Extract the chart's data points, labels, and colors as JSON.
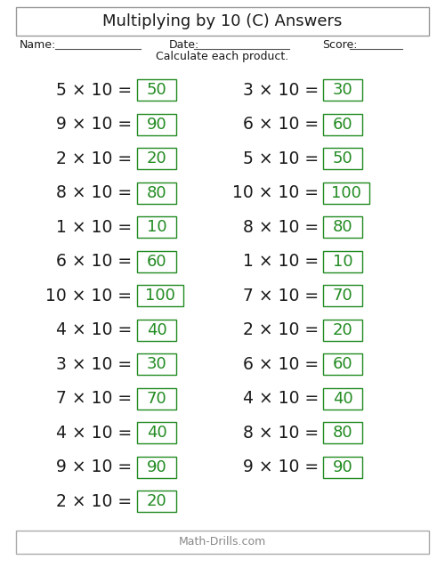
{
  "title": "Multiplying by 10 (C) Answers",
  "name_label": "Name:",
  "date_label": "Date:",
  "score_label": "Score:",
  "instruction": "Calculate each product.",
  "footer": "Math-Drills.com",
  "left_questions": [
    {
      "a": 5,
      "b": 10,
      "ans": 50
    },
    {
      "a": 9,
      "b": 10,
      "ans": 90
    },
    {
      "a": 2,
      "b": 10,
      "ans": 20
    },
    {
      "a": 8,
      "b": 10,
      "ans": 80
    },
    {
      "a": 1,
      "b": 10,
      "ans": 10
    },
    {
      "a": 6,
      "b": 10,
      "ans": 60
    },
    {
      "a": 10,
      "b": 10,
      "ans": 100
    },
    {
      "a": 4,
      "b": 10,
      "ans": 40
    },
    {
      "a": 3,
      "b": 10,
      "ans": 30
    },
    {
      "a": 7,
      "b": 10,
      "ans": 70
    },
    {
      "a": 4,
      "b": 10,
      "ans": 40
    },
    {
      "a": 9,
      "b": 10,
      "ans": 90
    },
    {
      "a": 2,
      "b": 10,
      "ans": 20
    }
  ],
  "right_questions": [
    {
      "a": 3,
      "b": 10,
      "ans": 30
    },
    {
      "a": 6,
      "b": 10,
      "ans": 60
    },
    {
      "a": 5,
      "b": 10,
      "ans": 50
    },
    {
      "a": 10,
      "b": 10,
      "ans": 100
    },
    {
      "a": 8,
      "b": 10,
      "ans": 80
    },
    {
      "a": 1,
      "b": 10,
      "ans": 10
    },
    {
      "a": 7,
      "b": 10,
      "ans": 70
    },
    {
      "a": 2,
      "b": 10,
      "ans": 20
    },
    {
      "a": 6,
      "b": 10,
      "ans": 60
    },
    {
      "a": 4,
      "b": 10,
      "ans": 40
    },
    {
      "a": 8,
      "b": 10,
      "ans": 80
    },
    {
      "a": 9,
      "b": 10,
      "ans": 90
    }
  ],
  "bg_color": "#ffffff",
  "text_color": "#1a1a1a",
  "answer_color": "#228B22",
  "box_edge_color": "#228B22",
  "title_fontsize": 13,
  "label_fontsize": 9,
  "question_fontsize": 13.5,
  "answer_fontsize": 13,
  "instruction_fontsize": 9,
  "footer_fontsize": 9
}
